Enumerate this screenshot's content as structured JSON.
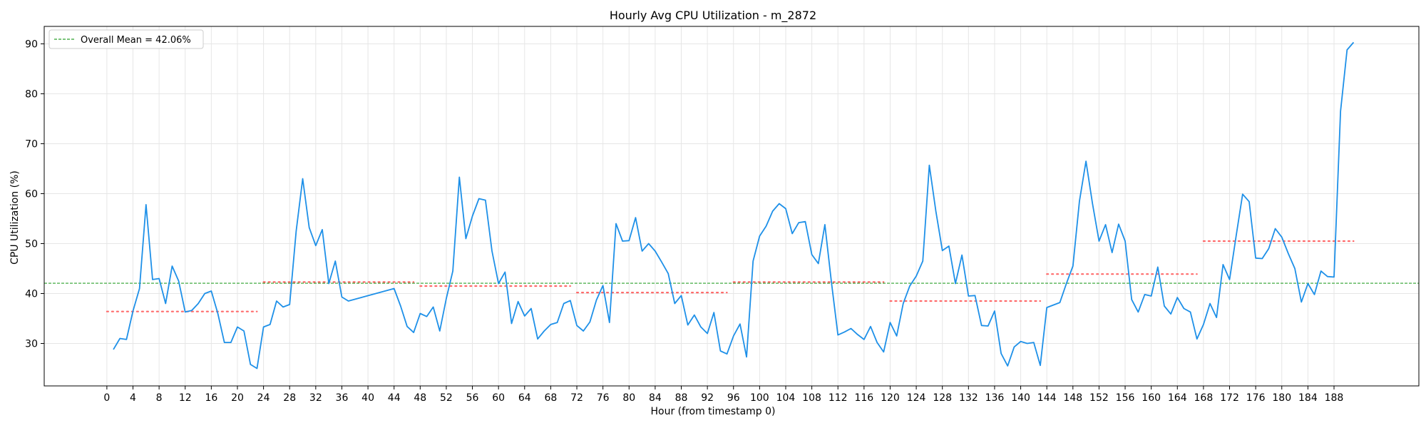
{
  "chart_data": {
    "type": "line",
    "title": "Hourly Avg CPU Utilization - m_2872",
    "xlabel": "Hour (from timestamp 0)",
    "ylabel": "CPU Utilization (%)",
    "xlim": [
      -9.6,
      201
    ],
    "ylim": [
      21.5,
      93.5
    ],
    "xticks": [
      0,
      4,
      8,
      12,
      16,
      20,
      24,
      28,
      32,
      36,
      40,
      44,
      48,
      52,
      56,
      60,
      64,
      68,
      72,
      76,
      80,
      84,
      88,
      92,
      96,
      100,
      104,
      108,
      112,
      116,
      120,
      124,
      128,
      132,
      136,
      140,
      144,
      148,
      152,
      156,
      160,
      164,
      168,
      172,
      176,
      180,
      184,
      188
    ],
    "yticks": [
      30,
      40,
      50,
      60,
      70,
      80,
      90
    ],
    "grid": true,
    "legend": {
      "placement": "top-left",
      "entries": [
        "Overall Mean = 42.06%"
      ]
    },
    "colors": {
      "series": "#1e90e8",
      "mean": "#2ca02c",
      "daily_mean": "#ff6b6b"
    },
    "overall_mean": 42.06,
    "series": [
      {
        "name": "",
        "x": [
          1,
          2,
          3,
          4,
          5,
          6,
          7,
          8,
          9,
          10,
          11,
          12,
          13,
          14,
          15,
          16,
          17,
          18,
          19,
          20,
          21,
          22,
          23,
          24,
          25,
          26,
          27,
          28,
          29,
          30,
          31,
          32,
          33,
          34,
          35,
          36,
          37,
          44,
          45,
          46,
          47,
          48,
          49,
          50,
          51,
          52,
          53,
          54,
          55,
          56,
          57,
          58,
          59,
          60,
          61,
          62,
          63,
          64,
          65,
          66,
          67,
          68,
          69,
          70,
          71,
          72,
          73,
          74,
          75,
          76,
          77,
          78,
          79,
          80,
          81,
          82,
          83,
          84,
          85,
          86,
          87,
          88,
          89,
          90,
          91,
          92,
          93,
          94,
          95,
          96,
          97,
          98,
          99,
          100,
          101,
          102,
          103,
          104,
          105,
          106,
          107,
          108,
          109,
          110,
          111,
          112,
          113,
          114,
          115,
          116,
          117,
          118,
          119,
          120,
          121,
          122,
          123,
          124,
          125,
          126,
          127,
          128,
          129,
          130,
          131,
          132,
          133,
          134,
          135,
          136,
          137,
          138,
          139,
          140,
          141,
          142,
          143,
          144,
          145,
          146,
          147,
          148,
          149,
          150,
          151,
          152,
          153,
          154,
          155,
          156,
          157,
          158,
          159,
          160,
          161,
          162,
          163,
          164,
          165,
          166,
          167,
          168,
          169,
          170,
          171,
          172,
          173,
          174,
          175,
          176,
          177,
          178,
          179,
          180,
          181,
          182,
          183,
          184,
          185,
          186,
          187,
          188,
          189,
          190,
          191
        ],
        "y": [
          28.8,
          31.0,
          30.8,
          36.5,
          41.0,
          57.8,
          42.8,
          43.0,
          38.0,
          45.5,
          42.5,
          36.3,
          36.6,
          38.0,
          40.0,
          40.5,
          36.0,
          30.2,
          30.2,
          33.3,
          32.5,
          25.8,
          25.0,
          33.3,
          33.8,
          38.5,
          37.3,
          37.8,
          52.5,
          63.0,
          53.2,
          49.6,
          52.8,
          42.0,
          46.5,
          39.3,
          38.5,
          41.0,
          37.5,
          33.4,
          32.2,
          36.0,
          35.4,
          37.3,
          32.5,
          39.0,
          44.5,
          63.3,
          51.0,
          55.5,
          59.0,
          58.7,
          48.5,
          42.0,
          44.3,
          34.0,
          38.4,
          35.5,
          37.0,
          30.9,
          32.5,
          33.8,
          34.2,
          38.0,
          38.6,
          33.6,
          32.5,
          34.3,
          38.7,
          41.6,
          34.2,
          54.0,
          50.5,
          50.6,
          55.2,
          48.5,
          50.0,
          48.5,
          46.3,
          44.0,
          38.0,
          39.6,
          33.7,
          35.7,
          33.3,
          32.0,
          36.2,
          28.5,
          27.9,
          31.5,
          33.9,
          27.3,
          46.5,
          51.5,
          53.5,
          56.5,
          58.0,
          57.0,
          52.0,
          54.2,
          54.4,
          47.8,
          46.0,
          53.8,
          42.3,
          31.7,
          32.3,
          33.0,
          31.8,
          30.8,
          33.4,
          30.2,
          28.3,
          34.2,
          31.5,
          38.0,
          41.5,
          43.5,
          46.5,
          65.7,
          56.5,
          48.6,
          49.5,
          42.0,
          47.7,
          39.5,
          39.6,
          33.6,
          33.5,
          36.5,
          28.0,
          25.5,
          29.3,
          30.4,
          30.0,
          30.2,
          25.6,
          37.2,
          37.7,
          38.2,
          42.0,
          45.5,
          58.5,
          66.5,
          58.0,
          50.5,
          53.8,
          48.2,
          53.9,
          50.5,
          38.8,
          36.3,
          39.8,
          39.5,
          45.3,
          37.5,
          35.9,
          39.2,
          37.0,
          36.3,
          30.9,
          33.8,
          38.0,
          35.2,
          45.8,
          42.8,
          51.5,
          59.9,
          58.4,
          47.1,
          47.0,
          49.0,
          53.0,
          51.3,
          48.0,
          45.0,
          38.3,
          42.0,
          39.8,
          44.5,
          43.4,
          43.3,
          76.5,
          88.8,
          90.3
        ]
      }
    ],
    "daily_means": [
      {
        "x0": 0,
        "x1": 23,
        "y": 36.4
      },
      {
        "x0": 24,
        "x1": 47,
        "y": 42.3
      },
      {
        "x0": 48,
        "x1": 71,
        "y": 41.5
      },
      {
        "x0": 72,
        "x1": 95,
        "y": 40.2
      },
      {
        "x0": 96,
        "x1": 119,
        "y": 42.3
      },
      {
        "x0": 120,
        "x1": 143,
        "y": 38.5
      },
      {
        "x0": 144,
        "x1": 167,
        "y": 43.9
      },
      {
        "x0": 168,
        "x1": 191,
        "y": 50.5
      }
    ]
  }
}
